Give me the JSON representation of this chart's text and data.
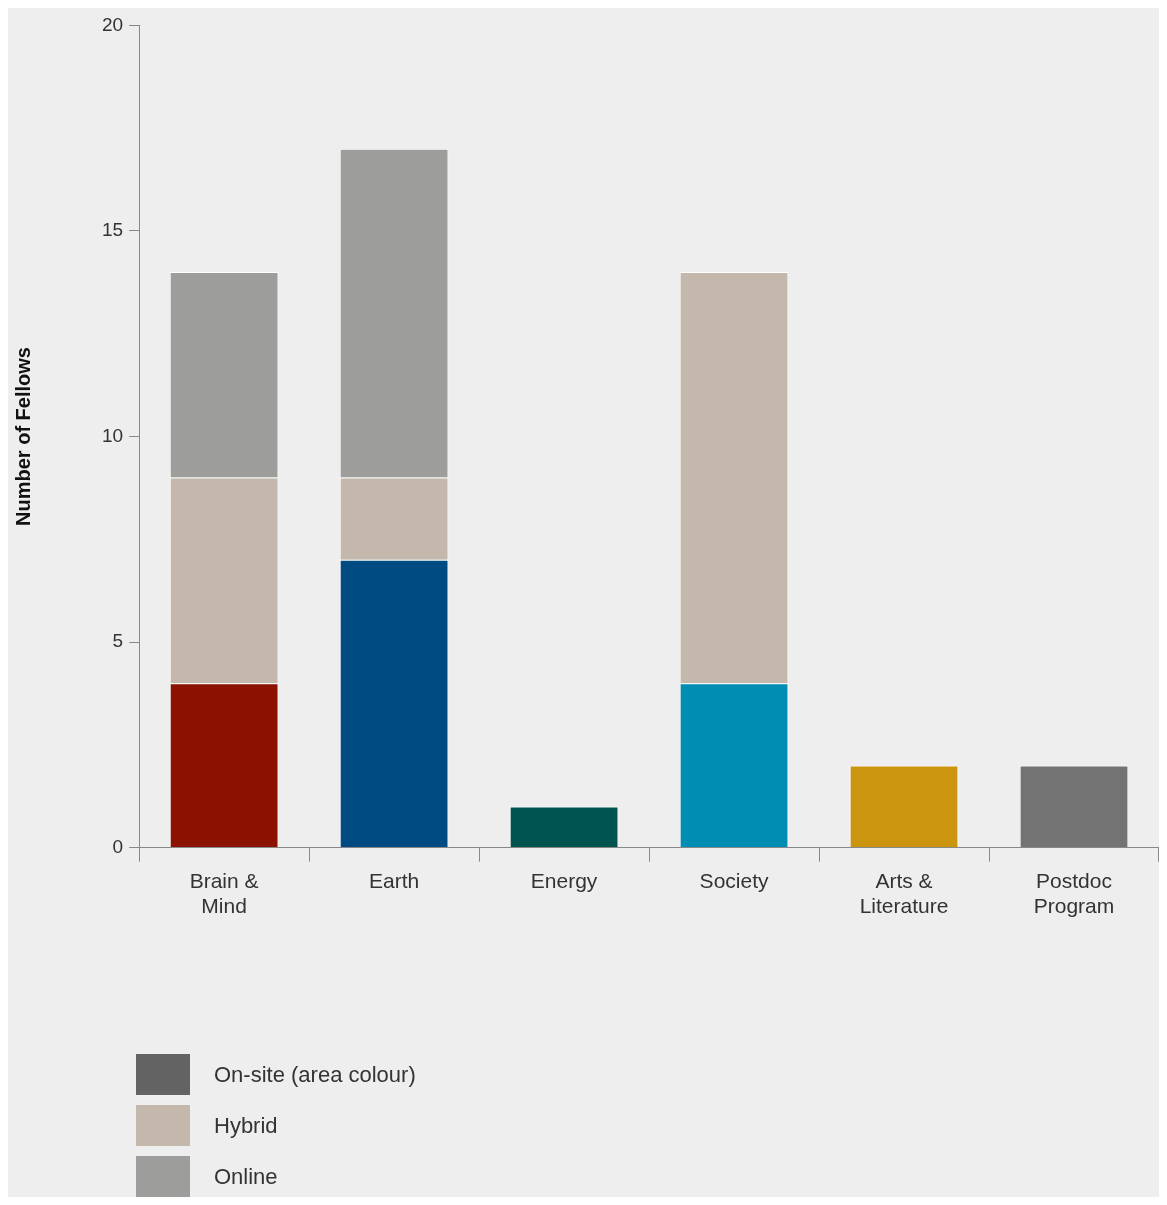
{
  "chart_data": {
    "type": "bar",
    "ylabel": "Number of Fellows",
    "categories": [
      "Brain & Mind",
      "Earth",
      "Energy",
      "Society",
      "Arts & Literature",
      "Postdoc Program"
    ],
    "series": [
      {
        "name": "On-site (area colour)",
        "color": "#636363",
        "colors": [
          "#8b1100",
          "#004b82",
          "#00544f",
          "#008db3",
          "#cc9510",
          "#737373"
        ],
        "values": [
          4,
          7,
          1,
          4,
          2,
          2
        ]
      },
      {
        "name": "Hybrid",
        "color": "#c3b8ab",
        "values": [
          5,
          2,
          0,
          10,
          0,
          0
        ]
      },
      {
        "name": "Online",
        "color": "#9d9d9b",
        "values": [
          5,
          8,
          0,
          0,
          0,
          0
        ]
      }
    ],
    "stacked": true,
    "ylim": [
      0,
      20
    ],
    "yticks": [
      0,
      5,
      10,
      15,
      20
    ],
    "grid": false,
    "legend": "bottom left"
  }
}
